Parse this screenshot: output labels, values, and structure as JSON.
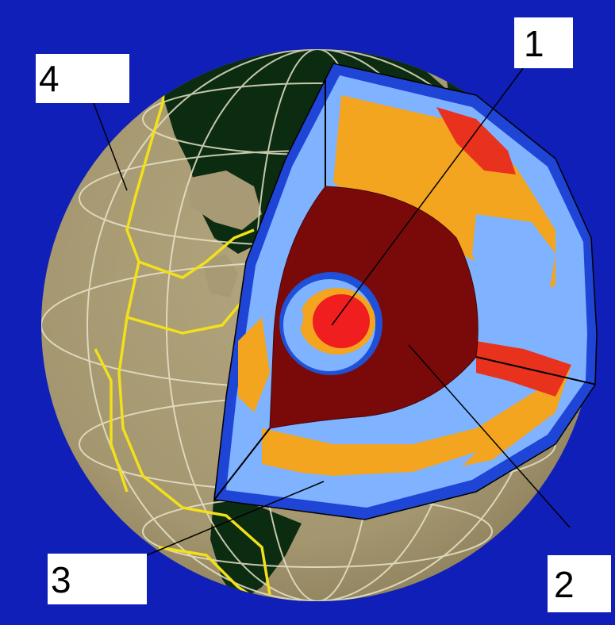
{
  "diagram": {
    "labels": {
      "one": "1",
      "two": "2",
      "three": "3",
      "four": "4"
    },
    "colors": {
      "background": "#0f1fb8",
      "land_surface": "#a89a74",
      "ocean_dark": "#0c2c12",
      "grid_lines": "#e8e4c8",
      "plate_boundaries": "#f2e01a",
      "mantle_cold": "#7fb2ff",
      "mantle_cold_dark": "#1e50d8",
      "mantle_warm": "#f3a51f",
      "mantle_hot": "#e8321e",
      "outer_core": "#7a0a0a",
      "inner_core_hot": "#f01e1e"
    }
  }
}
